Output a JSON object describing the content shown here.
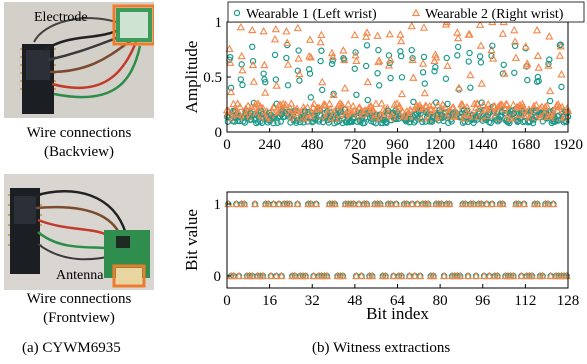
{
  "panel_a": {
    "photo1_label": "Electrode",
    "photo1_caption_line1": "Wire connections",
    "photo1_caption_line2": "(Backview)",
    "photo2_label": "Antenna",
    "photo2_caption_line1": "Wire connections",
    "photo2_caption_line2": "(Frontview)",
    "subcaption": "(a)  CYWM6935"
  },
  "panel_b": {
    "subcaption": "(b)  Witness extractions"
  },
  "colors": {
    "series1": "#1a9a8a",
    "series2": "#f5874a",
    "highlight_box": "#f07c2a"
  },
  "chart_data": [
    {
      "type": "scatter",
      "title": "",
      "xlabel": "Sample index",
      "ylabel": "Amplitude",
      "xlim": [
        0,
        1920
      ],
      "ylim": [
        0,
        1
      ],
      "x_ticks": [
        "0",
        "240",
        "480",
        "720",
        "960",
        "1200",
        "1440",
        "1680",
        "1920"
      ],
      "y_ticks": [
        "0",
        "0.5",
        "1"
      ],
      "legend_position": "top",
      "series": [
        {
          "name": "Wearable 1 (Left wrist)",
          "marker": "circle",
          "color": "#1a9a8a",
          "description_values_sample": [
            0.12,
            0.15,
            0.65,
            0.1,
            0.55,
            0.08,
            0.6,
            0.12,
            0.5,
            0.1,
            0.62,
            0.1,
            0.58,
            0.15
          ]
        },
        {
          "name": "Wearable 2 (Right wrist)",
          "marker": "triangle",
          "color": "#f5874a",
          "description_values_sample": [
            0.18,
            0.2,
            0.9,
            0.15,
            0.85,
            0.2,
            0.95,
            0.18,
            0.8,
            0.15,
            0.92,
            0.2,
            0.88,
            0.2
          ]
        }
      ]
    },
    {
      "type": "scatter",
      "title": "",
      "xlabel": "Bit index",
      "ylabel": "Bit value",
      "xlim": [
        0,
        128
      ],
      "ylim": [
        0,
        1
      ],
      "x_ticks": [
        "0",
        "16",
        "32",
        "48",
        "64",
        "80",
        "96",
        "112",
        "128"
      ],
      "y_ticks": [
        "0",
        "1"
      ],
      "series": [
        {
          "name": "Wearable 1 (Left wrist)",
          "marker": "circle",
          "color": "#1a9a8a",
          "values": [
            1,
            0,
            0,
            1,
            0,
            1,
            1,
            0,
            0,
            0,
            1,
            0,
            0,
            0,
            1,
            1,
            0,
            1,
            0,
            1,
            0,
            1,
            1,
            1,
            0,
            0,
            1,
            0,
            0,
            0,
            1,
            1,
            0,
            1,
            0,
            0,
            0,
            0,
            1,
            1,
            1,
            0,
            0,
            0,
            1,
            1,
            1,
            1,
            0,
            1,
            0,
            1,
            1,
            0,
            0,
            1,
            1,
            1,
            0,
            0,
            1,
            1,
            0,
            1,
            0,
            0,
            1,
            1,
            0,
            1,
            0,
            1,
            0,
            1,
            1,
            1,
            0,
            0,
            1,
            1,
            1,
            0,
            1,
            1,
            0,
            0,
            0,
            0,
            1,
            1,
            0,
            1,
            1,
            0,
            1,
            1,
            0,
            1,
            0,
            1,
            0,
            0,
            1,
            1,
            0,
            0,
            0,
            0,
            1,
            1,
            0,
            1,
            0,
            0,
            0,
            1,
            1,
            0,
            0,
            1,
            1,
            0,
            1,
            0,
            0,
            0,
            0,
            0
          ]
        },
        {
          "name": "Wearable 2 (Right wrist)",
          "marker": "triangle",
          "color": "#f5874a",
          "values": [
            1,
            0,
            0,
            1,
            0,
            1,
            1,
            0,
            0,
            0,
            1,
            0,
            0,
            0,
            1,
            1,
            0,
            1,
            0,
            1,
            0,
            1,
            1,
            1,
            0,
            0,
            1,
            0,
            0,
            0,
            1,
            1,
            0,
            1,
            0,
            0,
            0,
            0,
            1,
            1,
            1,
            0,
            0,
            0,
            1,
            1,
            1,
            1,
            0,
            1,
            0,
            1,
            1,
            0,
            0,
            1,
            1,
            1,
            0,
            0,
            1,
            1,
            0,
            1,
            0,
            0,
            1,
            1,
            0,
            1,
            0,
            1,
            0,
            1,
            1,
            1,
            0,
            0,
            1,
            1,
            1,
            0,
            1,
            1,
            0,
            0,
            0,
            0,
            1,
            1,
            0,
            1,
            1,
            0,
            1,
            1,
            0,
            1,
            0,
            1,
            0,
            0,
            1,
            1,
            0,
            0,
            0,
            0,
            1,
            1,
            0,
            1,
            0,
            0,
            0,
            1,
            1,
            0,
            0,
            1,
            1,
            0,
            1,
            0,
            0,
            0,
            0,
            0
          ]
        }
      ]
    }
  ]
}
